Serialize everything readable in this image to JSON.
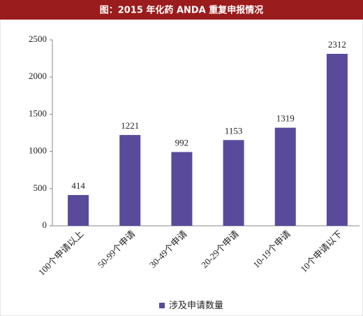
{
  "chart_data": {
    "type": "bar",
    "title": "图：2015 年化药 ANDA 重复申报情况",
    "categories": [
      "100个申请以上",
      "50-99个申请",
      "30-49个申请",
      "20-29个申请",
      "10-19个申请",
      "10个申请以下"
    ],
    "series": [
      {
        "name": "涉及申请数量",
        "color": "#5a4a9c",
        "values": [
          414,
          1221,
          992,
          1153,
          1319,
          2312
        ]
      }
    ],
    "ylim": [
      0,
      2500
    ],
    "yticks": [
      0,
      500,
      1000,
      1500,
      2000,
      2500
    ],
    "grid": false,
    "legend": "bottom"
  }
}
